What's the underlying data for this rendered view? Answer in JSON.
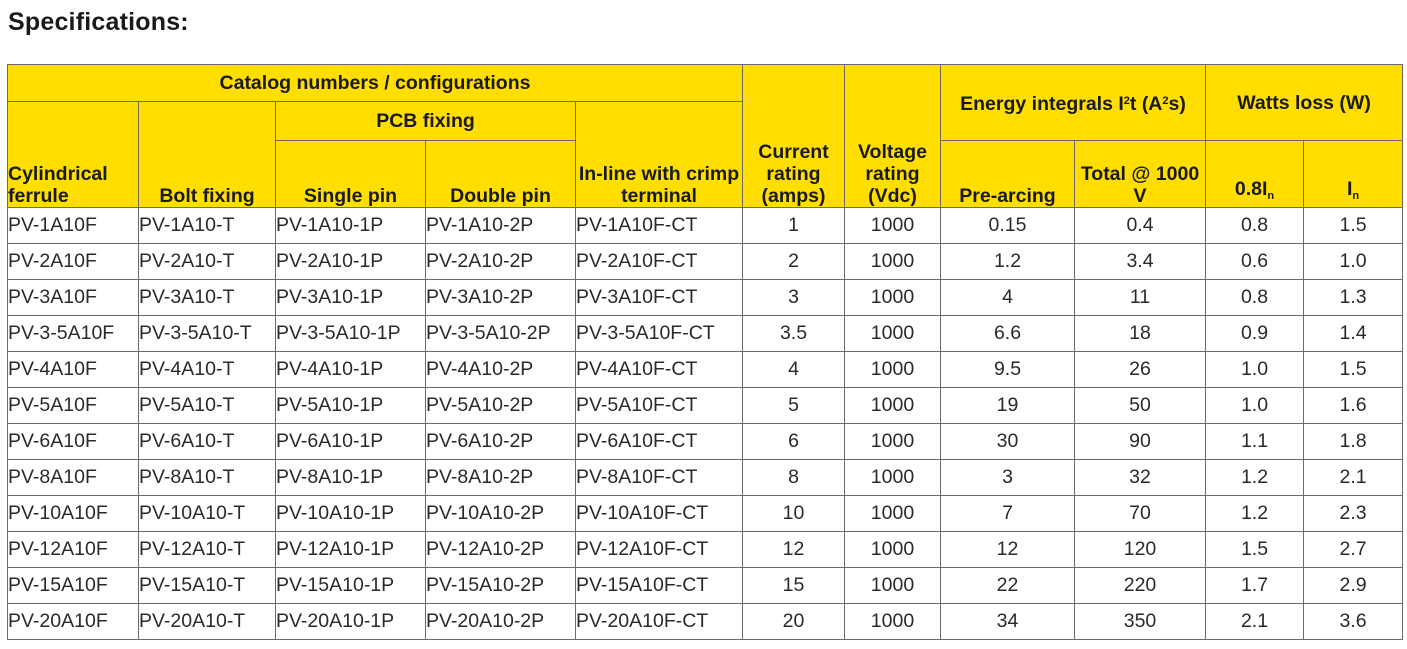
{
  "page_title": "Specifications:",
  "headers": {
    "catalog_group": "Catalog numbers / configurations",
    "pcb_group": "PCB fixing",
    "cylindrical": "Cylindrical ferrule",
    "bolt": "Bolt fixing",
    "single_pin": "Single pin",
    "double_pin": "Double pin",
    "inline": "In-line with crimp terminal",
    "current": "Current rating (amps)",
    "voltage": "Voltage rating (Vdc)",
    "energy_group_pre": "Energy integrals I",
    "energy_group_sup": "2",
    "energy_group_post": "t (A",
    "energy_group_sup2": "2",
    "energy_group_end": "s)",
    "pre_arcing": "Pre-arcing",
    "total": "Total @ 1000 V",
    "watts_group": "Watts loss (W)",
    "w08_prefix": "0.8I",
    "w08_sub": "n",
    "wn_prefix": "I",
    "wn_sub": "n"
  },
  "rows": [
    [
      "PV-1A10F",
      "PV-1A10-T",
      "PV-1A10-1P",
      "PV-1A10-2P",
      "PV-1A10F-CT",
      "1",
      "1000",
      "0.15",
      "0.4",
      "0.8",
      "1.5"
    ],
    [
      "PV-2A10F",
      "PV-2A10-T",
      "PV-2A10-1P",
      "PV-2A10-2P",
      "PV-2A10F-CT",
      "2",
      "1000",
      "1.2",
      "3.4",
      "0.6",
      "1.0"
    ],
    [
      "PV-3A10F",
      "PV-3A10-T",
      "PV-3A10-1P",
      "PV-3A10-2P",
      "PV-3A10F-CT",
      "3",
      "1000",
      "4",
      "11",
      "0.8",
      "1.3"
    ],
    [
      "PV-3-5A10F",
      "PV-3-5A10-T",
      "PV-3-5A10-1P",
      "PV-3-5A10-2P",
      "PV-3-5A10F-CT",
      "3.5",
      "1000",
      "6.6",
      "18",
      "0.9",
      "1.4"
    ],
    [
      "PV-4A10F",
      "PV-4A10-T",
      "PV-4A10-1P",
      "PV-4A10-2P",
      "PV-4A10F-CT",
      "4",
      "1000",
      "9.5",
      "26",
      "1.0",
      "1.5"
    ],
    [
      "PV-5A10F",
      "PV-5A10-T",
      "PV-5A10-1P",
      "PV-5A10-2P",
      "PV-5A10F-CT",
      "5",
      "1000",
      "19",
      "50",
      "1.0",
      "1.6"
    ],
    [
      "PV-6A10F",
      "PV-6A10-T",
      "PV-6A10-1P",
      "PV-6A10-2P",
      "PV-6A10F-CT",
      "6",
      "1000",
      "30",
      "90",
      "1.1",
      "1.8"
    ],
    [
      "PV-8A10F",
      "PV-8A10-T",
      "PV-8A10-1P",
      "PV-8A10-2P",
      "PV-8A10F-CT",
      "8",
      "1000",
      "3",
      "32",
      "1.2",
      "2.1"
    ],
    [
      "PV-10A10F",
      "PV-10A10-T",
      "PV-10A10-1P",
      "PV-10A10-2P",
      "PV-10A10F-CT",
      "10",
      "1000",
      "7",
      "70",
      "1.2",
      "2.3"
    ],
    [
      "PV-12A10F",
      "PV-12A10-T",
      "PV-12A10-1P",
      "PV-12A10-2P",
      "PV-12A10F-CT",
      "12",
      "1000",
      "12",
      "120",
      "1.5",
      "2.7"
    ],
    [
      "PV-15A10F",
      "PV-15A10-T",
      "PV-15A10-1P",
      "PV-15A10-2P",
      "PV-15A10F-CT",
      "15",
      "1000",
      "22",
      "220",
      "1.7",
      "2.9"
    ],
    [
      "PV-20A10F",
      "PV-20A10-T",
      "PV-20A10-1P",
      "PV-20A10-2P",
      "PV-20A10F-CT",
      "20",
      "1000",
      "34",
      "350",
      "2.1",
      "3.6"
    ]
  ],
  "colors": {
    "header_fill": "#ffde00",
    "grid_line": "#6b6b6b"
  }
}
